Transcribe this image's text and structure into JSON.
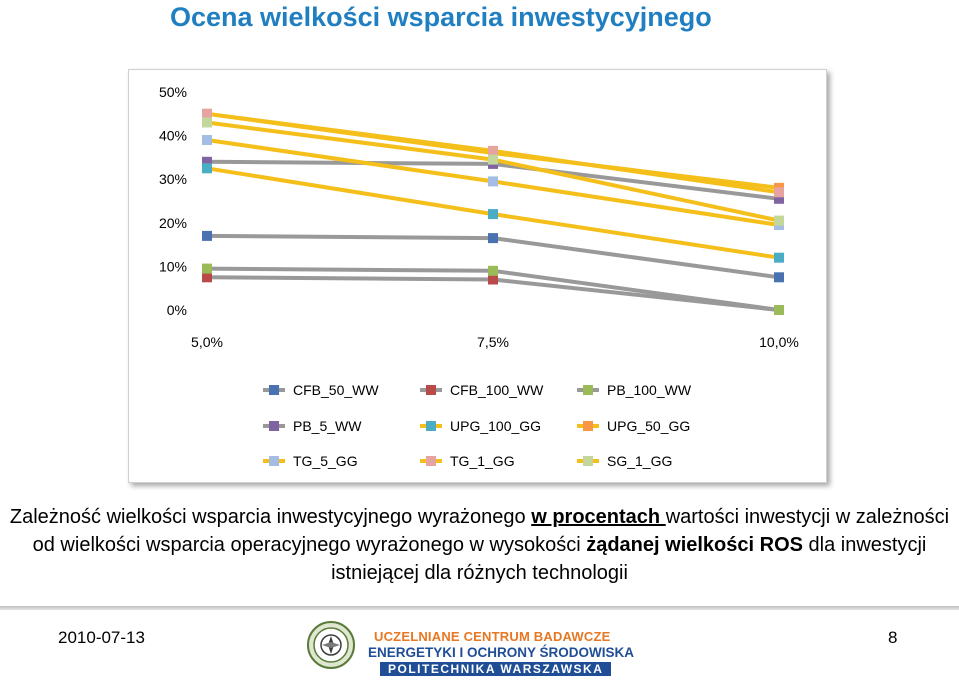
{
  "slide": {
    "title": "Ocena wielkości wsparcia inwestycyjnego",
    "caption": {
      "part1": "Zależność wielkości wsparcia inwestycyjnego wyrażonego ",
      "emph_underlined": "w procentach ",
      "part2": "wartości inwestycji w zależności od wielkości wsparcia operacyjnego wyrażonego w wysokości ",
      "emph_bold": "żądanej wielkości ROS",
      "part3": " dla inwestycji istniejącej dla różnych technologii"
    },
    "footer": {
      "date": "2010-07-13",
      "page": "8",
      "logo_line1": "UCZELNIANE CENTRUM BADAWCZE",
      "logo_line2": "ENERGETYKI I OCHRONY ŚRODOWISKA",
      "logo_line3": "POLITECHNIKA WARSZAWSKA"
    }
  },
  "chart_data": {
    "type": "line",
    "title": "",
    "xlabel": "",
    "ylabel": "",
    "categories": [
      "5,0%",
      "7,5%",
      "10,0%"
    ],
    "y_ticks": [
      "0%",
      "10%",
      "20%",
      "30%",
      "40%",
      "50%"
    ],
    "ylim": [
      0,
      50
    ],
    "grid": false,
    "legend_position": "bottom",
    "series": [
      {
        "name": "CFB_50_WW",
        "line_color": "#999999",
        "marker_color": "#4a72b0",
        "values": [
          17,
          16.5,
          7.5
        ]
      },
      {
        "name": "CFB_100_WW",
        "line_color": "#999999",
        "marker_color": "#b84a4a",
        "values": [
          7.5,
          7,
          0
        ]
      },
      {
        "name": "PB_100_WW",
        "line_color": "#999999",
        "marker_color": "#9bbb59",
        "values": [
          9.5,
          9,
          0
        ]
      },
      {
        "name": "PB_5_WW",
        "line_color": "#999999",
        "marker_color": "#8064a2",
        "values": [
          34,
          33.5,
          25.5
        ]
      },
      {
        "name": "UPG_100_GG",
        "line_color": "#f5bf1b",
        "marker_color": "#4bacc6",
        "values": [
          32.5,
          22,
          12
        ]
      },
      {
        "name": "UPG_50_GG",
        "line_color": "#f5bf1b",
        "marker_color": "#f79646",
        "values": [
          45,
          36,
          28
        ]
      },
      {
        "name": "TG_5_GG",
        "line_color": "#f5bf1b",
        "marker_color": "#a6bde3",
        "values": [
          39,
          29.5,
          19.5
        ]
      },
      {
        "name": "TG_1_GG",
        "line_color": "#f5bf1b",
        "marker_color": "#e6a3a0",
        "values": [
          45,
          36.5,
          27
        ]
      },
      {
        "name": "SG_1_GG",
        "line_color": "#f5bf1b",
        "marker_color": "#c4d79b",
        "values": [
          43,
          34.5,
          20.5
        ]
      }
    ]
  }
}
